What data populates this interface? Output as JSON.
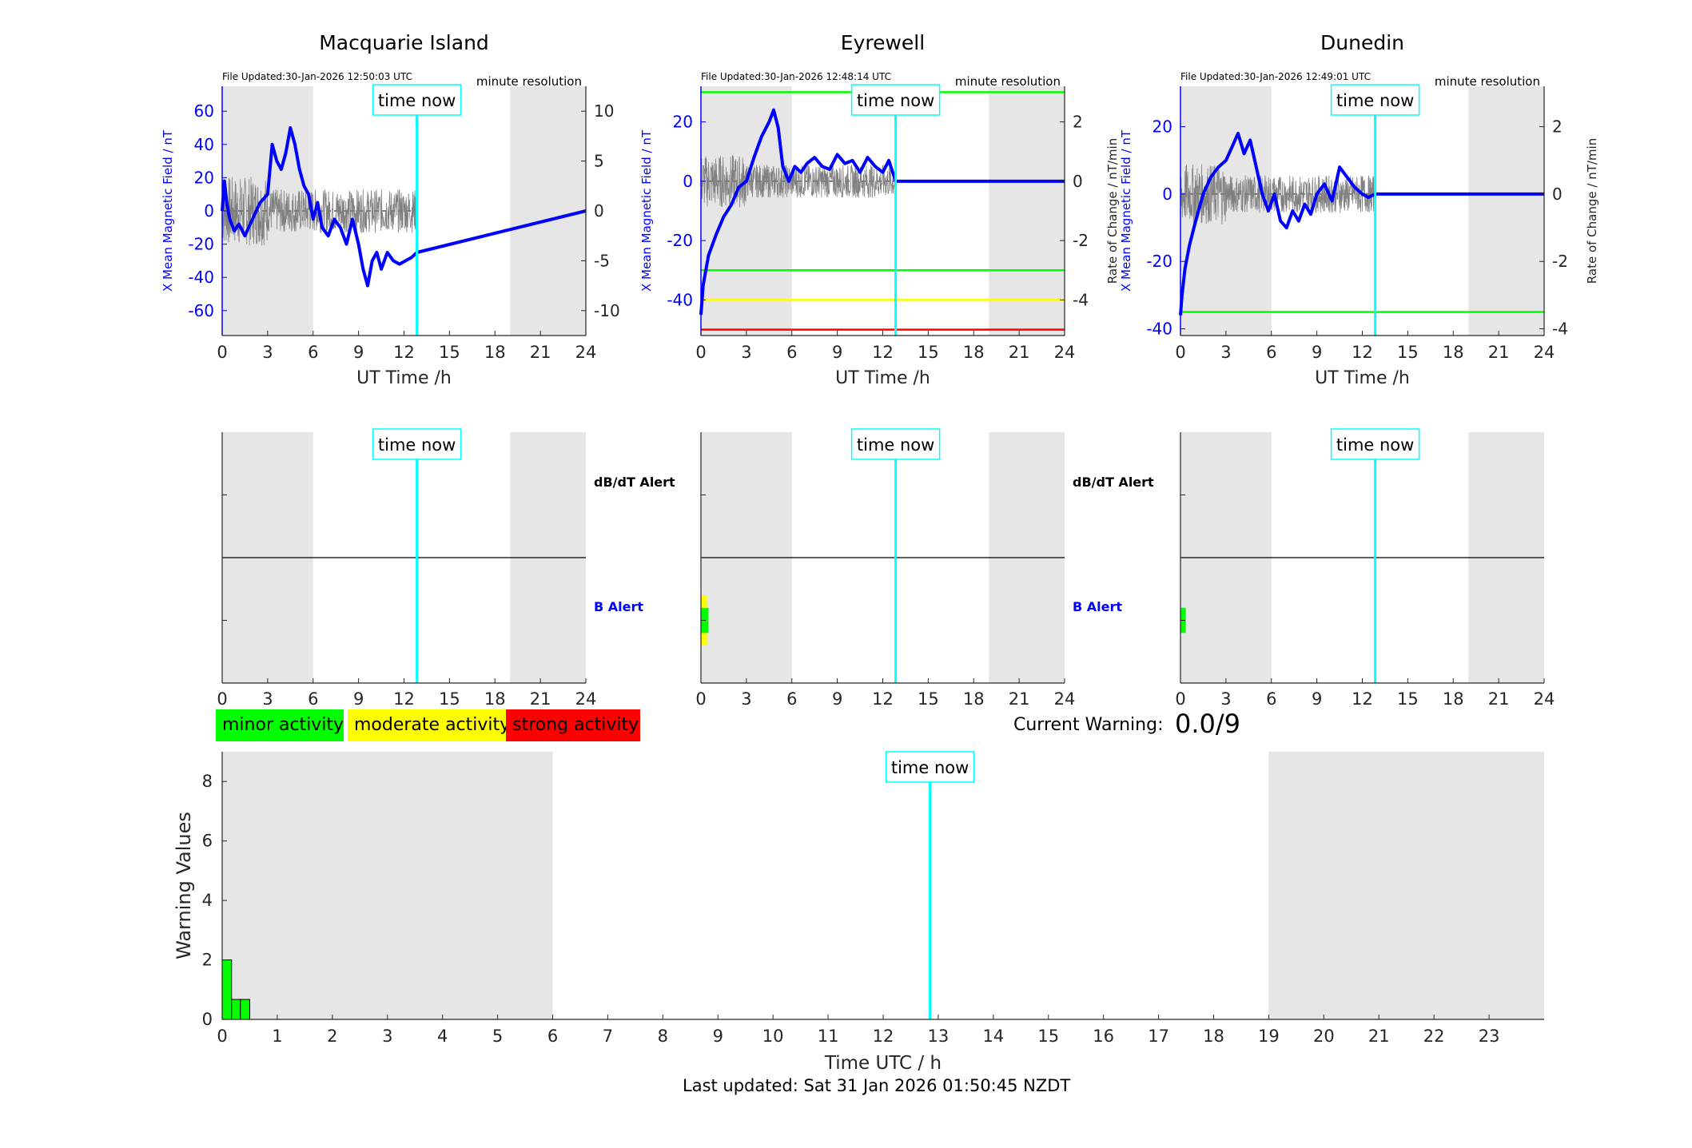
{
  "colors": {
    "shade": "#e6e6e6",
    "field": "#0000ff",
    "rate": "#808080",
    "now": "#00ffff",
    "minor": "#00ff00",
    "moderate": "#ffff00",
    "strong": "#ff0000",
    "axis": "#262626"
  },
  "now_label": "time now",
  "legend": {
    "minor": "minor activity",
    "moderate": "moderate activity",
    "strong": "strong activity"
  },
  "current_warning": {
    "label": "Current Warning:",
    "value": "0.0/9"
  },
  "footer": "Last updated: Sat 31 Jan 2026 01:50:45 NZDT",
  "chart_data": [
    {
      "type": "line",
      "title": "Macquarie Island",
      "file_updated": "File Updated:30-Jan-2026 12:50:03 UTC",
      "resolution": "minute resolution",
      "xlabel": "UT Time /h",
      "ylabel": "X Mean Magnetic Field / nT",
      "y2label": "",
      "xlim": [
        0,
        24
      ],
      "xticks": [
        0,
        3,
        6,
        9,
        12,
        15,
        18,
        21,
        24
      ],
      "ylim": [
        -75,
        75
      ],
      "yticks": [
        -60,
        -40,
        -20,
        0,
        20,
        40,
        60
      ],
      "y2lim": [
        -12.5,
        12.5
      ],
      "y2ticks": [
        -10,
        -5,
        0,
        5,
        10
      ],
      "shaded": [
        [
          0,
          6
        ],
        [
          19,
          24
        ]
      ],
      "now": 12.85,
      "series": [
        {
          "axis": "left",
          "x": [
            0,
            0.15,
            0.3,
            0.5,
            0.8,
            1.1,
            1.5,
            2,
            2.5,
            3,
            3.3,
            3.6,
            3.9,
            4.2,
            4.5,
            4.8,
            5.1,
            5.4,
            5.7,
            6,
            6.3,
            6.6,
            7,
            7.4,
            7.8,
            8.2,
            8.6,
            9,
            9.3,
            9.6,
            9.9,
            10.2,
            10.5,
            10.9,
            11.3,
            11.7,
            12.1,
            12.5,
            12.85,
            24
          ],
          "y": [
            0,
            18,
            5,
            -5,
            -12,
            -8,
            -15,
            -5,
            5,
            10,
            40,
            30,
            25,
            35,
            50,
            40,
            25,
            15,
            10,
            -5,
            5,
            -10,
            -15,
            -5,
            -10,
            -20,
            -5,
            -20,
            -35,
            -45,
            -30,
            -25,
            -35,
            -25,
            -30,
            -32,
            -30,
            -28,
            -25,
            0
          ]
        }
      ],
      "thresholds": []
    },
    {
      "type": "line",
      "title": "Eyrewell",
      "file_updated": "File Updated:30-Jan-2026 12:48:14 UTC",
      "resolution": "minute resolution",
      "xlabel": "UT Time /h",
      "ylabel": "X Mean Magnetic Field / nT",
      "y2label": "Rate of Change / nT/min",
      "xlim": [
        0,
        24
      ],
      "xticks": [
        0,
        3,
        6,
        9,
        12,
        15,
        18,
        21,
        24
      ],
      "ylim": [
        -52,
        32
      ],
      "yticks": [
        -40,
        -20,
        0,
        20
      ],
      "y2lim": [
        -5.2,
        3.2
      ],
      "y2ticks": [
        -4,
        -2,
        0,
        2
      ],
      "shaded": [
        [
          0,
          6
        ],
        [
          19,
          24
        ]
      ],
      "now": 12.85,
      "series": [
        {
          "axis": "left",
          "x": [
            0,
            0.15,
            0.5,
            1,
            1.5,
            2,
            2.5,
            3,
            3.5,
            4,
            4.5,
            4.8,
            5.1,
            5.4,
            5.8,
            6.2,
            6.6,
            7,
            7.5,
            8,
            8.5,
            9,
            9.5,
            10,
            10.5,
            11,
            11.5,
            12,
            12.4,
            12.85,
            24
          ],
          "y": [
            -45,
            -35,
            -25,
            -18,
            -12,
            -8,
            -2,
            0,
            8,
            15,
            20,
            24,
            18,
            5,
            0,
            5,
            3,
            6,
            8,
            5,
            4,
            9,
            6,
            7,
            3,
            8,
            5,
            3,
            7,
            0,
            0
          ]
        }
      ],
      "thresholds": [
        {
          "color": "#00ff00",
          "axis": "right",
          "value": 3
        },
        {
          "color": "#00ff00",
          "axis": "right",
          "value": -3
        },
        {
          "color": "#ffff00",
          "axis": "right",
          "value": -4
        },
        {
          "color": "#ff0000",
          "axis": "right",
          "value": -5
        }
      ]
    },
    {
      "type": "line",
      "title": "Dunedin",
      "file_updated": "File Updated:30-Jan-2026 12:49:01 UTC",
      "resolution": "minute resolution",
      "xlabel": "UT Time /h",
      "ylabel": "X Mean Magnetic Field / nT",
      "y2label": "Rate of Change / nT/min",
      "xlim": [
        0,
        24
      ],
      "xticks": [
        0,
        3,
        6,
        9,
        12,
        15,
        18,
        21,
        24
      ],
      "ylim": [
        -42,
        32
      ],
      "yticks": [
        -40,
        -20,
        0,
        20
      ],
      "y2lim": [
        -4.2,
        3.2
      ],
      "y2ticks": [
        -4,
        -2,
        0,
        2
      ],
      "shaded": [
        [
          0,
          6
        ],
        [
          19,
          24
        ]
      ],
      "now": 12.85,
      "series": [
        {
          "axis": "left",
          "x": [
            0,
            0.1,
            0.3,
            0.6,
            1,
            1.5,
            2,
            2.5,
            3,
            3.4,
            3.8,
            4.2,
            4.6,
            5,
            5.4,
            5.8,
            6.2,
            6.6,
            7,
            7.4,
            7.8,
            8.2,
            8.6,
            9,
            9.5,
            10,
            10.5,
            11,
            11.5,
            12,
            12.4,
            12.85,
            24
          ],
          "y": [
            -36,
            -30,
            -22,
            -15,
            -8,
            0,
            5,
            8,
            10,
            14,
            18,
            12,
            16,
            8,
            0,
            -5,
            0,
            -8,
            -10,
            -5,
            -8,
            -3,
            -6,
            0,
            3,
            -2,
            8,
            5,
            2,
            0,
            -1,
            0,
            0
          ]
        }
      ],
      "thresholds": [
        {
          "color": "#00ff00",
          "axis": "right",
          "value": -3.5
        }
      ]
    }
  ],
  "alert_panels": [
    {
      "labels": [
        "dB/dT Alert",
        "B Alert"
      ],
      "xticks": [
        0,
        3,
        6,
        9,
        12,
        15,
        18,
        21,
        24
      ],
      "shaded": [
        [
          0,
          6
        ],
        [
          19,
          24
        ]
      ],
      "now": 12.85,
      "b_alert": []
    },
    {
      "labels": [
        "dB/dT Alert",
        "B Alert"
      ],
      "xticks": [
        0,
        3,
        6,
        9,
        12,
        15,
        18,
        21,
        24
      ],
      "shaded": [
        [
          0,
          6
        ],
        [
          19,
          24
        ]
      ],
      "now": 12.85,
      "b_alert": [
        {
          "level": "moderate",
          "x0": 0,
          "x1": 0.4,
          "frac": 0.4
        },
        {
          "level": "minor",
          "x0": 0,
          "x1": 0.5,
          "frac": 0.2
        }
      ]
    },
    {
      "labels": [
        "dB/dT Alert",
        "B Alert"
      ],
      "xticks": [
        0,
        3,
        6,
        9,
        12,
        15,
        18,
        21,
        24
      ],
      "shaded": [
        [
          0,
          6
        ],
        [
          19,
          24
        ]
      ],
      "now": 12.85,
      "b_alert": [
        {
          "level": "minor",
          "x0": 0,
          "x1": 0.35,
          "frac": 0.2
        }
      ]
    }
  ],
  "warning_chart": {
    "type": "bar",
    "xlabel": "Time UTC / h",
    "ylabel": "Warning Values",
    "xlim": [
      0,
      24
    ],
    "xticks": [
      0,
      1,
      2,
      3,
      4,
      5,
      6,
      7,
      8,
      9,
      10,
      11,
      12,
      13,
      14,
      15,
      16,
      17,
      18,
      19,
      20,
      21,
      22,
      23
    ],
    "ylim": [
      0,
      9
    ],
    "yticks": [
      0,
      2,
      4,
      6,
      8
    ],
    "shaded": [
      [
        0,
        6
      ],
      [
        19,
        24
      ]
    ],
    "now": 12.85,
    "bars": [
      {
        "x0": 0,
        "x1": 0.17,
        "value": 2
      },
      {
        "x0": 0.17,
        "x1": 0.33,
        "value": 0.67
      },
      {
        "x0": 0.33,
        "x1": 0.5,
        "value": 0.67
      }
    ]
  }
}
